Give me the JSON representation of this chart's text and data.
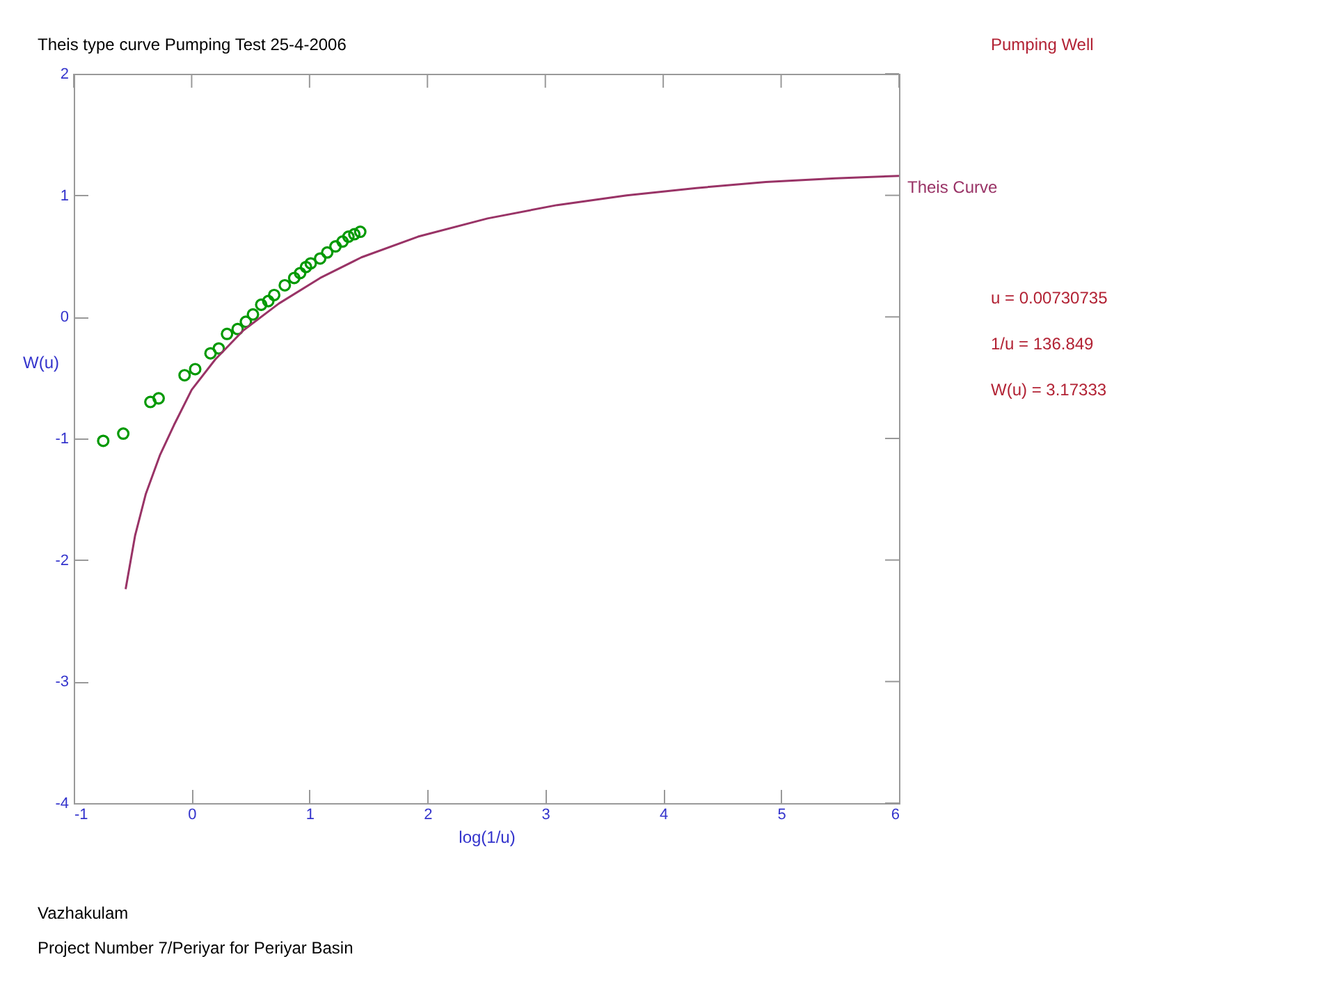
{
  "chart_data": {
    "type": "scatter",
    "title": "Theis type curve Pumping  Test 25-4-2006",
    "xlabel": "log(1/u)",
    "ylabel": "W(u)",
    "xlim": [
      -1,
      6
    ],
    "xticks": [
      -1,
      0,
      1,
      2,
      3,
      4,
      5,
      6
    ],
    "ylim": [
      -4,
      2
    ],
    "yticks": [
      -4,
      -3,
      -2,
      -1,
      0,
      1,
      2
    ],
    "legend": false,
    "series": [
      {
        "type": "scatter",
        "marker": "circle",
        "color": "#009900",
        "x": [
          -0.75,
          -0.58,
          -0.35,
          -0.28,
          -0.06,
          0.03,
          0.16,
          0.23,
          0.3,
          0.39,
          0.46,
          0.52,
          0.59,
          0.65,
          0.7,
          0.79,
          0.87,
          0.92,
          0.97,
          1.01,
          1.09,
          1.15,
          1.22,
          1.28,
          1.33,
          1.38,
          1.43
        ],
        "values": [
          -1.02,
          -0.96,
          -0.7,
          -0.67,
          -0.48,
          -0.43,
          -0.3,
          -0.26,
          -0.14,
          -0.1,
          -0.04,
          0.02,
          0.1,
          0.13,
          0.18,
          0.26,
          0.32,
          0.36,
          0.41,
          0.44,
          0.48,
          0.53,
          0.58,
          0.62,
          0.66,
          0.68,
          0.7
        ]
      },
      {
        "type": "line",
        "name": "Theis Curve",
        "color": "#993366",
        "x": [
          -0.56,
          -0.48,
          -0.39,
          -0.27,
          -0.15,
          0.0,
          0.2,
          0.44,
          0.74,
          1.09,
          1.44,
          1.92,
          2.51,
          3.1,
          3.69,
          4.28,
          4.87,
          5.46,
          6.0
        ],
        "values": [
          -2.24,
          -1.8,
          -1.46,
          -1.14,
          -0.89,
          -0.6,
          -0.35,
          -0.11,
          0.11,
          0.32,
          0.49,
          0.66,
          0.81,
          0.92,
          1.0,
          1.06,
          1.11,
          1.14,
          1.16
        ]
      }
    ],
    "annotations": [
      "Pumping Well",
      "u = 0.00730735",
      "1/u = 136.849",
      "W(u) = 3.17333",
      "Vazhakulam",
      "Project Number 7/Periyar for Periyar Basin"
    ]
  }
}
